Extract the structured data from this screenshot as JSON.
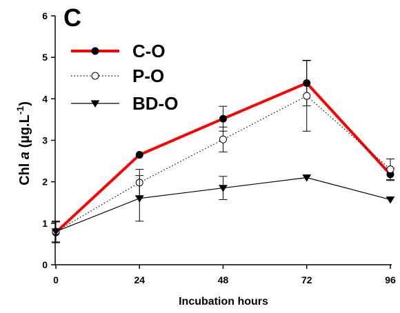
{
  "panel_label": "C",
  "chart_data": {
    "type": "line",
    "xlabel": "Incubation hours",
    "ylabel": {
      "prefix": "Chl ",
      "italic": "a",
      "middle": " (µg.L",
      "superscript": "-1",
      "suffix": ")"
    },
    "x": [
      0,
      24,
      48,
      72,
      96
    ],
    "xticks": [
      "0",
      "24",
      "48",
      "72",
      "96"
    ],
    "xlim": [
      0,
      96
    ],
    "ylim": [
      0,
      6
    ],
    "yticks": [
      "0",
      "1",
      "2",
      "3",
      "4",
      "5",
      "6"
    ],
    "grid": false,
    "legend_position": "top-left",
    "series": [
      {
        "name": "C-O",
        "values": [
          0.78,
          2.65,
          3.52,
          4.38,
          2.18
        ],
        "error": [
          0.25,
          0.0,
          0.3,
          0.55,
          0.15
        ],
        "color": "#ff0000",
        "marker": "filled-circle",
        "line": "solid-thick"
      },
      {
        "name": "P-O",
        "values": [
          0.8,
          1.98,
          3.02,
          4.07,
          2.3
        ],
        "error": [
          0.25,
          0.32,
          0.3,
          0.85,
          0.25
        ],
        "color": "#000000",
        "marker": "open-circle",
        "line": "dotted"
      },
      {
        "name": "BD-O",
        "values": [
          0.8,
          1.6,
          1.85,
          2.1,
          1.57
        ],
        "error": [
          0.25,
          0.55,
          0.28,
          0.0,
          0.0
        ],
        "color": "#000000",
        "marker": "filled-triangle-down",
        "line": "solid-thin"
      }
    ]
  }
}
